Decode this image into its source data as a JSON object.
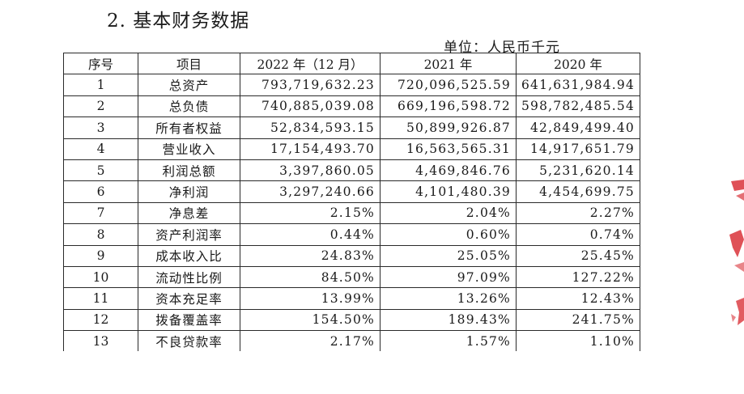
{
  "heading": "2. 基本财务数据",
  "unit": "单位：人民币千元",
  "columns": [
    "序号",
    "项目",
    "2022 年（12 月）",
    "2021 年",
    "2020 年"
  ],
  "rows": [
    {
      "no": "1",
      "item": "总资产",
      "y2022": "793,719,632.23",
      "y2021": "720,096,525.59",
      "y2020": "641,631,984.94"
    },
    {
      "no": "2",
      "item": "总负债",
      "y2022": "740,885,039.08",
      "y2021": "669,196,598.72",
      "y2020": "598,782,485.54"
    },
    {
      "no": "3",
      "item": "所有者权益",
      "y2022": "52,834,593.15",
      "y2021": "50,899,926.87",
      "y2020": "42,849,499.40"
    },
    {
      "no": "4",
      "item": "营业收入",
      "y2022": "17,154,493.70",
      "y2021": "16,563,565.31",
      "y2020": "14,917,651.79"
    },
    {
      "no": "5",
      "item": "利润总额",
      "y2022": "3,397,860.05",
      "y2021": "4,469,846.76",
      "y2020": "5,231,620.14"
    },
    {
      "no": "6",
      "item": "净利润",
      "y2022": "3,297,240.66",
      "y2021": "4,101,480.39",
      "y2020": "4,454,699.75"
    },
    {
      "no": "7",
      "item": "净息差",
      "y2022": "2.15%",
      "y2021": "2.04%",
      "y2020": "2.27%"
    },
    {
      "no": "8",
      "item": "资产利润率",
      "y2022": "0.44%",
      "y2021": "0.60%",
      "y2020": "0.74%"
    },
    {
      "no": "9",
      "item": "成本收入比",
      "y2022": "24.83%",
      "y2021": "25.05%",
      "y2020": "25.45%"
    },
    {
      "no": "10",
      "item": "流动性比例",
      "y2022": "84.50%",
      "y2021": "97.09%",
      "y2020": "127.22%"
    },
    {
      "no": "11",
      "item": "资本充足率",
      "y2022": "13.99%",
      "y2021": "13.26%",
      "y2020": "12.43%"
    },
    {
      "no": "12",
      "item": "拨备覆盖率",
      "y2022": "154.50%",
      "y2021": "189.43%",
      "y2020": "241.75%"
    },
    {
      "no": "13",
      "item": "不良贷款率",
      "y2022": "2.17%",
      "y2021": "1.57%",
      "y2020": "1.10%"
    }
  ],
  "stamp_color": "#d9333a"
}
